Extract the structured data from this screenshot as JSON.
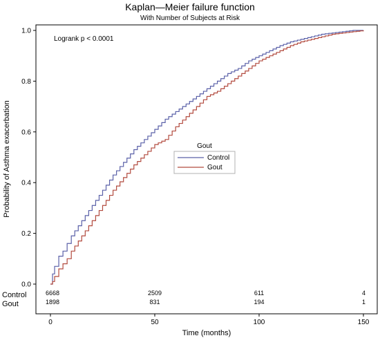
{
  "chart_data": {
    "type": "line",
    "title": "Kaplan—Meier failure function",
    "subtitle": "With Number of Subjects at Risk",
    "xlabel": "Time (months)",
    "ylabel": "Probability of Asthma exacerbation",
    "xlim": [
      0,
      153
    ],
    "ylim": [
      0,
      1.0
    ],
    "x_ticks": [
      0,
      50,
      100,
      150
    ],
    "y_ticks": [
      "0.0",
      "0.2",
      "0.4",
      "0.6",
      "0.8",
      "1.0"
    ],
    "grid": false,
    "annotation": "Logrank p < 0.0001",
    "legend": {
      "title": "Gout",
      "position": "center",
      "entries": [
        "Control",
        "Gout"
      ]
    },
    "series": [
      {
        "name": "Control",
        "color": "#5a60a8",
        "x": [
          0,
          1,
          2,
          4,
          6,
          8,
          10,
          15,
          20,
          25,
          30,
          35,
          40,
          45,
          50,
          55,
          60,
          65,
          70,
          75,
          80,
          85,
          90,
          95,
          100,
          105,
          110,
          115,
          120,
          125,
          130,
          135,
          140,
          145,
          150
        ],
        "y": [
          0.0,
          0.04,
          0.07,
          0.11,
          0.13,
          0.16,
          0.19,
          0.25,
          0.31,
          0.37,
          0.43,
          0.48,
          0.53,
          0.57,
          0.61,
          0.65,
          0.68,
          0.71,
          0.74,
          0.77,
          0.8,
          0.83,
          0.85,
          0.88,
          0.9,
          0.92,
          0.94,
          0.955,
          0.965,
          0.975,
          0.985,
          0.99,
          0.995,
          1.0,
          1.0
        ]
      },
      {
        "name": "Gout",
        "color": "#b24a3e",
        "x": [
          0,
          1,
          2,
          4,
          6,
          8,
          10,
          15,
          20,
          25,
          30,
          35,
          40,
          45,
          50,
          55,
          60,
          65,
          70,
          75,
          80,
          85,
          90,
          95,
          100,
          105,
          110,
          115,
          120,
          125,
          130,
          135,
          140,
          145,
          150
        ],
        "y": [
          0.0,
          0.01,
          0.03,
          0.06,
          0.08,
          0.1,
          0.13,
          0.19,
          0.25,
          0.31,
          0.37,
          0.42,
          0.47,
          0.51,
          0.55,
          0.57,
          0.62,
          0.66,
          0.7,
          0.74,
          0.76,
          0.79,
          0.82,
          0.85,
          0.88,
          0.9,
          0.92,
          0.94,
          0.955,
          0.965,
          0.975,
          0.985,
          0.99,
          0.995,
          1.0
        ]
      }
    ],
    "at_risk": {
      "x": [
        0,
        50,
        100,
        150
      ],
      "rows": [
        {
          "label": "Control",
          "values": [
            "6668",
            "2509",
            "611",
            "4"
          ]
        },
        {
          "label": "Gout",
          "values": [
            "1898",
            "831",
            "194",
            "1"
          ]
        }
      ]
    }
  }
}
